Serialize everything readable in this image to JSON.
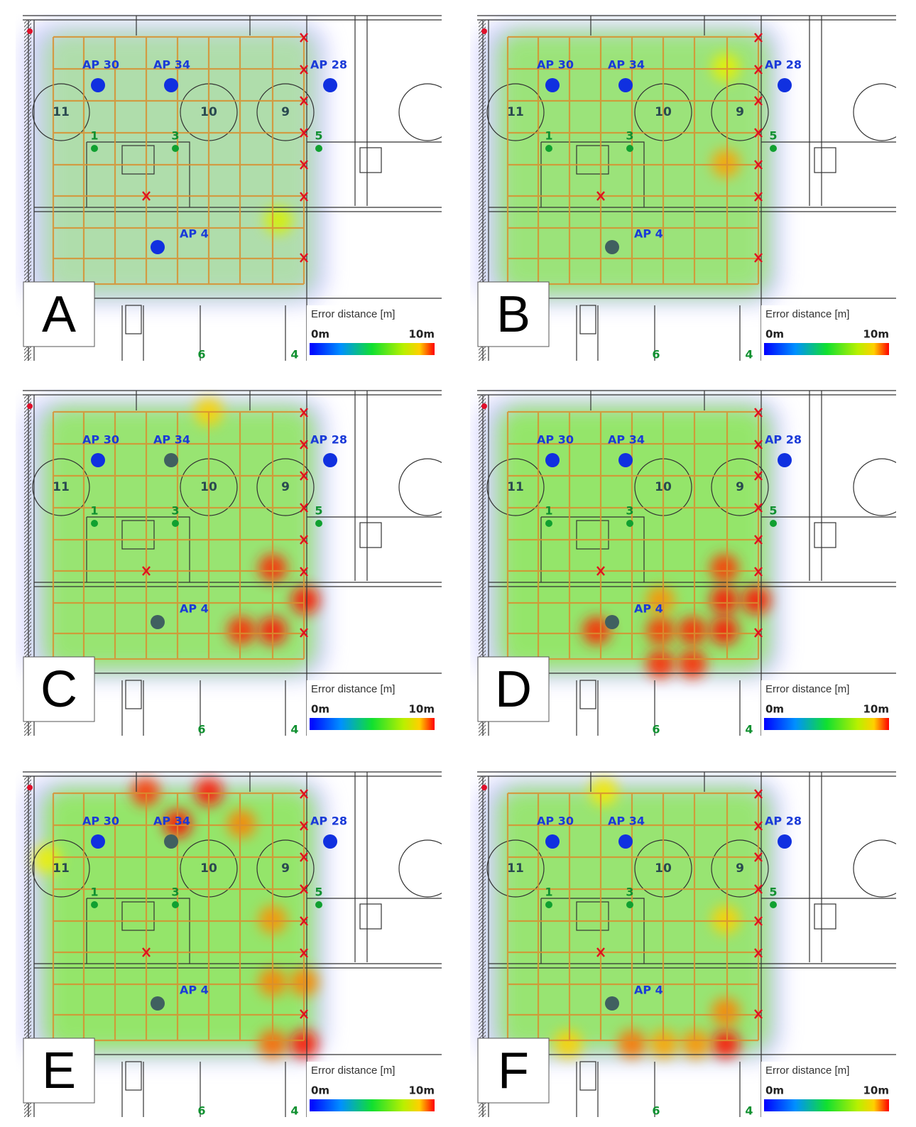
{
  "panels": [
    {
      "letter": "A",
      "ap_labels": [
        "AP 30",
        "AP 34",
        "AP 28",
        "AP 4"
      ],
      "rooms": [
        "11",
        "10",
        "9"
      ],
      "points": [
        "1",
        "3",
        "5",
        "6",
        "4"
      ],
      "legend": {
        "title": "Error distance [m]",
        "min": "0m",
        "max": "10m"
      }
    },
    {
      "letter": "B",
      "ap_labels": [
        "AP 30",
        "AP 34",
        "AP 28",
        "AP 4"
      ],
      "rooms": [
        "11",
        "10",
        "9"
      ],
      "points": [
        "1",
        "3",
        "5",
        "6",
        "4"
      ],
      "legend": {
        "title": "Error distance [m]",
        "min": "0m",
        "max": "10m"
      }
    },
    {
      "letter": "C",
      "ap_labels": [
        "AP 30",
        "AP 34",
        "AP 28",
        "AP 4"
      ],
      "rooms": [
        "11",
        "10",
        "9"
      ],
      "points": [
        "1",
        "3",
        "5",
        "6",
        "4"
      ],
      "legend": {
        "title": "Error distance [m]",
        "min": "0m",
        "max": "10m"
      }
    },
    {
      "letter": "D",
      "ap_labels": [
        "AP 30",
        "AP 34",
        "AP 28",
        "AP 4"
      ],
      "rooms": [
        "11",
        "10",
        "9"
      ],
      "points": [
        "1",
        "3",
        "5",
        "6",
        "4"
      ],
      "legend": {
        "title": "Error distance [m]",
        "min": "0m",
        "max": "10m"
      }
    },
    {
      "letter": "E",
      "ap_labels": [
        "AP 30",
        "AP 34",
        "AP 28",
        "AP 4"
      ],
      "rooms": [
        "11",
        "10",
        "9"
      ],
      "points": [
        "1",
        "3",
        "5",
        "6",
        "4"
      ],
      "legend": {
        "title": "Error distance [m]",
        "min": "0m",
        "max": "10m"
      }
    },
    {
      "letter": "F",
      "ap_labels": [
        "AP 30",
        "AP 34",
        "AP 28",
        "AP 4"
      ],
      "rooms": [
        "11",
        "10",
        "9"
      ],
      "points": [
        "1",
        "3",
        "5",
        "6",
        "4"
      ],
      "legend": {
        "title": "Error distance [m]",
        "min": "0m",
        "max": "10m"
      }
    }
  ]
}
